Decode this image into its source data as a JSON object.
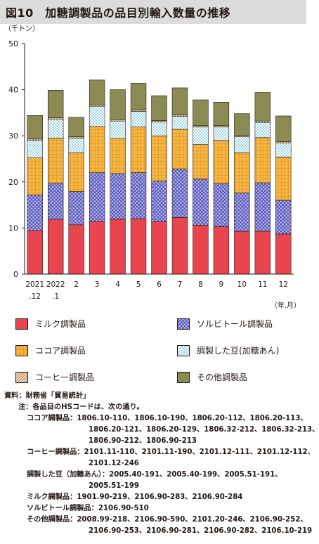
{
  "title": "図10　加糖調製品の品目別輸入数量の推移",
  "chart_data": {
    "type": "bar",
    "stacked": true,
    "y_unit": "（千トン）",
    "x_unit": "（年.月）",
    "ylim": [
      0,
      50
    ],
    "yticks": [
      0,
      10,
      20,
      30,
      40,
      50
    ],
    "grid": false,
    "legend_position": "bottom",
    "categories": [
      {
        "line1": "2021",
        "line2": ".12"
      },
      {
        "line1": "2022",
        "line2": ".1"
      },
      {
        "line1": "2",
        "line2": ""
      },
      {
        "line1": "3",
        "line2": ""
      },
      {
        "line1": "4",
        "line2": ""
      },
      {
        "line1": "5",
        "line2": ""
      },
      {
        "line1": "6",
        "line2": ""
      },
      {
        "line1": "7",
        "line2": ""
      },
      {
        "line1": "8",
        "line2": ""
      },
      {
        "line1": "9",
        "line2": ""
      },
      {
        "line1": "10",
        "line2": ""
      },
      {
        "line1": "11",
        "line2": ""
      },
      {
        "line1": "12",
        "line2": ""
      }
    ],
    "series": [
      {
        "name": "ミルク調製品",
        "color": "#e8454e",
        "pattern": "solid",
        "values": [
          9.5,
          11.9,
          10.7,
          11.4,
          11.9,
          12.0,
          11.4,
          12.3,
          10.6,
          10.3,
          9.3,
          9.3,
          8.7
        ]
      },
      {
        "name": "ソルビトール調製品",
        "color": "#a9a9e8",
        "pattern": "crosshatch",
        "values": [
          7.7,
          7.8,
          7.2,
          10.6,
          9.9,
          10.0,
          8.8,
          10.5,
          10.0,
          9.3,
          8.3,
          10.5,
          7.3
        ]
      },
      {
        "name": "ココア調製品",
        "color": "#f6b13e",
        "pattern": "grid",
        "values": [
          8.0,
          9.8,
          8.4,
          10.0,
          7.6,
          9.9,
          9.8,
          8.6,
          7.5,
          9.4,
          8.7,
          9.8,
          9.4
        ]
      },
      {
        "name": "調製した豆(加糖あん)",
        "color": "#7fd1e0",
        "pattern": "dots",
        "values": [
          3.8,
          4.1,
          3.2,
          4.4,
          3.8,
          3.4,
          3.0,
          2.8,
          3.8,
          2.9,
          3.5,
          3.3,
          3.0
        ]
      },
      {
        "name": "コーヒー調製品",
        "color": "#e8c8a8",
        "pattern": "diagonal",
        "values": [
          0.3,
          0.3,
          0.3,
          0.3,
          0.3,
          0.3,
          0.3,
          0.3,
          0.3,
          0.3,
          0.3,
          0.3,
          0.3
        ]
      },
      {
        "name": "その他調製品",
        "color": "#8b8a52",
        "pattern": "solid",
        "values": [
          5.1,
          6.0,
          4.2,
          5.4,
          6.5,
          5.8,
          5.4,
          5.9,
          5.6,
          5.1,
          4.7,
          6.2,
          5.6
        ]
      }
    ]
  },
  "notes": {
    "source_label": "資料：",
    "source_text": "財務省「貿易統計」",
    "note_label": "注：",
    "note_text": "各品目のHSコードは、次の通り。",
    "items": [
      {
        "label": "ココア調製品：",
        "lines": [
          "1806.10-110、1806.10-190、1806.20-112、1806.20-113、",
          "1806.20-121、1806.20-129、1806.32-212、1806.32-213、",
          "1806.90-212、1806.90-213"
        ]
      },
      {
        "label": "コーヒー調製品：",
        "lines": [
          "2101.11-110、2101.11-190、2101.12-111、2101.12-112、",
          "2101.12-246"
        ]
      },
      {
        "label": "調製した豆（加糖あん）：",
        "lines": [
          "2005.40-191、2005.40-199、2005.51-191、",
          "2005.51-199"
        ]
      },
      {
        "label": "ミルク調製品：",
        "lines": [
          "1901.90-219、2106.90-283、2106.90-284"
        ]
      },
      {
        "label": "ソルビトール調製品：",
        "lines": [
          "2106.90-510"
        ]
      },
      {
        "label": "その他調製品：",
        "lines": [
          "2008.99-218、2106.90-590、2101.20-246、2106.90-252、",
          "2106.90-253、2106.90-281、2106.90-282、2106.10-219"
        ]
      }
    ]
  },
  "legend_order": [
    0,
    1,
    2,
    3,
    4,
    5
  ]
}
